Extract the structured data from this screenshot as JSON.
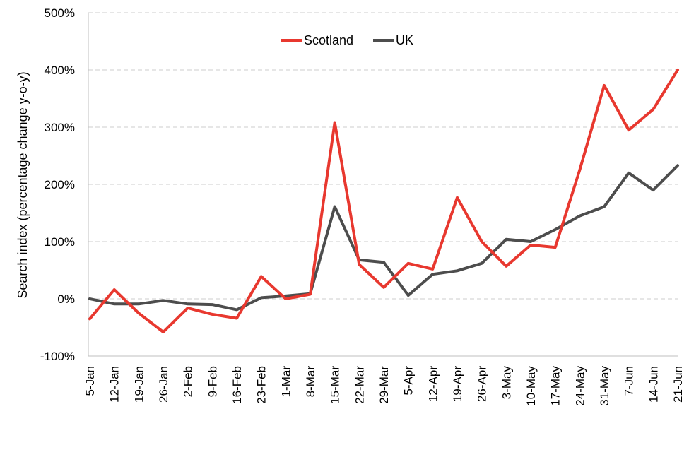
{
  "chart_data": {
    "type": "line",
    "title": "",
    "xlabel": "",
    "ylabel": "Search index (percentage change y-o-y)",
    "ylim": [
      -100,
      500
    ],
    "yticks": [
      -100,
      0,
      100,
      200,
      300,
      400,
      500
    ],
    "ytick_labels": [
      "-100%",
      "0%",
      "100%",
      "200%",
      "300%",
      "400%",
      "500%"
    ],
    "grid": "horizontal-dashed",
    "legend_position": "top-center",
    "categories": [
      "5-Jan",
      "12-Jan",
      "19-Jan",
      "26-Jan",
      "2-Feb",
      "9-Feb",
      "16-Feb",
      "23-Feb",
      "1-Mar",
      "8-Mar",
      "15-Mar",
      "22-Mar",
      "29-Mar",
      "5-Apr",
      "12-Apr",
      "19-Apr",
      "26-Apr",
      "3-May",
      "10-May",
      "17-May",
      "24-May",
      "31-May",
      "7-Jun",
      "14-Jun",
      "21-Jun"
    ],
    "series": [
      {
        "name": "Scotland",
        "color": "#e8382f",
        "values": [
          -35,
          16,
          -25,
          -58,
          -16,
          -27,
          -34,
          39,
          0,
          8,
          308,
          60,
          20,
          62,
          52,
          177,
          100,
          57,
          94,
          90,
          225,
          373,
          295,
          331,
          400
        ]
      },
      {
        "name": "UK",
        "color": "#4d4d4d",
        "values": [
          0,
          -9,
          -9,
          -3,
          -9,
          -10,
          -19,
          2,
          5,
          9,
          161,
          68,
          64,
          6,
          43,
          49,
          62,
          104,
          100,
          121,
          145,
          161,
          220,
          190,
          233
        ]
      }
    ]
  }
}
